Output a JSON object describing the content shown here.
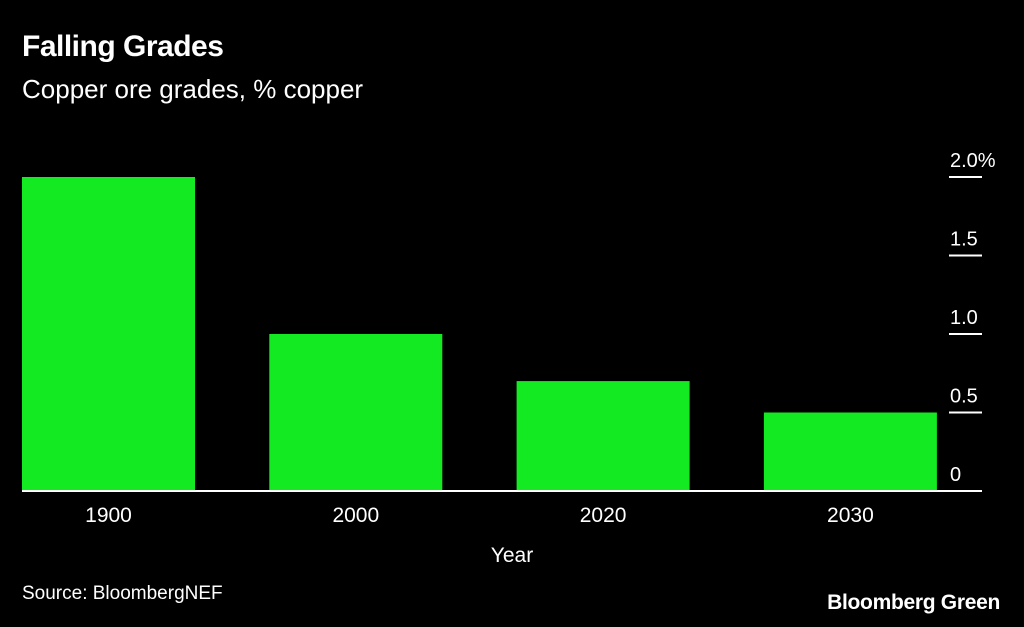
{
  "header": {
    "title": "Falling Grades",
    "subtitle": "Copper ore grades, % copper"
  },
  "footer": {
    "source": "Source: BloombergNEF",
    "brand": "Bloomberg Green"
  },
  "colors": {
    "background": "#000000",
    "bar": "#13ea22",
    "text": "#ffffff"
  },
  "chart_data": {
    "type": "bar",
    "title": "Falling Grades",
    "subtitle": "Copper ore grades, % copper",
    "xlabel": "Year",
    "ylabel": "",
    "categories": [
      "1900",
      "2000",
      "2020",
      "2030"
    ],
    "values": [
      2.0,
      1.0,
      0.7,
      0.5
    ],
    "ylim": [
      0,
      2.0
    ],
    "yticks": [
      0,
      0.5,
      1.0,
      1.5,
      2.0
    ],
    "ytick_labels": [
      "0",
      "0.5",
      "1.0",
      "1.5",
      "2.0%"
    ],
    "y_axis_side": "right",
    "grid": false,
    "legend": "none"
  }
}
